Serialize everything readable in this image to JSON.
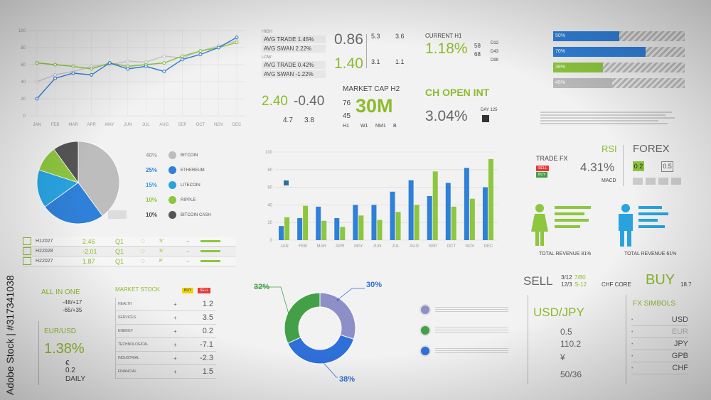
{
  "line_chart": {
    "y_ticks": [
      "100",
      "80",
      "60",
      "40",
      "20",
      "0"
    ],
    "months": [
      "JAN",
      "FEB",
      "MAR",
      "APR",
      "MAY",
      "JUN",
      "JUL",
      "AUG",
      "SEP",
      "OCT",
      "NOV",
      "DEC"
    ],
    "colors": {
      "blue": "#2f80d8",
      "green": "#8dc63f",
      "grey": "#cccccc"
    }
  },
  "high_low": {
    "high_label": "HIGH",
    "high_items": [
      "AVG TRADE 1.45%",
      "AVG SWAN 2.22%"
    ],
    "low_label": "LOW",
    "low_items": [
      "AVG TRADE 0.42%",
      "AVG SWAN -1.22%"
    ]
  },
  "stats_mid": {
    "v1": "0.86",
    "v1a": "5.3",
    "v1b": "3.6",
    "v2": "1.40",
    "v2a": "3.1",
    "v2b": "1.1"
  },
  "current_h1": {
    "label": "CURRENT H1",
    "value": "1.18%",
    "n1": "58",
    "n2": "68",
    "d1": "D12",
    "d2": "D43",
    "d3": "D99"
  },
  "progress_bars": [
    {
      "label": "50%",
      "value": 50,
      "color": "#2f80d8"
    },
    {
      "label": "70%",
      "value": 70,
      "color": "#2f80d8"
    },
    {
      "label": "38%",
      "value": 38,
      "color": "#8dc63f"
    },
    {
      "label": "45%",
      "value": 45,
      "color": "#bbbbbb"
    }
  ],
  "spread": {
    "v1": "2.40",
    "v2": "-0.40",
    "s1": "4.7",
    "s2": "3.8"
  },
  "market_cap": {
    "title": "MARKET CAP H2",
    "n1": "76",
    "n2": "45",
    "value": "30M",
    "h1": "H1",
    "w1": "W1",
    "nm1": "NM1",
    "b": "B"
  },
  "open_int": {
    "title": "CH OPEN INT",
    "value": "3.04%",
    "day": "DAY 125"
  },
  "pie": {
    "type": "pie",
    "slices": [
      {
        "name": "BITCOIN",
        "pct": 40,
        "label": "40%",
        "color": "#bdbdbd"
      },
      {
        "name": "ETHEREUM",
        "pct": 25,
        "label": "25%",
        "color": "#2f80d8"
      },
      {
        "name": "LITECOIN",
        "pct": 15,
        "label": "15%",
        "color": "#29a3e0"
      },
      {
        "name": "RIPPLE",
        "pct": 10,
        "label": "10%",
        "color": "#8dc63f"
      },
      {
        "name": "BITCOIN CASH",
        "pct": 10,
        "label": "10%",
        "color": "#555555"
      }
    ]
  },
  "chart_data": {
    "type": "bar",
    "categories": [
      "JAN",
      "FEB",
      "MAR",
      "APR",
      "MAY",
      "JUN",
      "JUL",
      "AUG",
      "SEP",
      "OCT",
      "NOV",
      "DEC"
    ],
    "y_ticks": [
      "100",
      "80",
      "60",
      "40",
      "20",
      "0"
    ],
    "ylim": [
      0,
      100
    ],
    "series": [
      {
        "color": "#2f80d8",
        "values": [
          16,
          25,
          38,
          25,
          40,
          40,
          55,
          68,
          50,
          65,
          82,
          60
        ]
      },
      {
        "color": "#8dc63f",
        "values": [
          26,
          39,
          22,
          15,
          28,
          23,
          32,
          40,
          78,
          38,
          47,
          92
        ]
      }
    ]
  },
  "trade_fx": {
    "title": "TRADE FX",
    "sell": "SELL",
    "buy": "BUY",
    "rsi": "RSI",
    "rsi_val": "4.31%",
    "macd": "MACD",
    "forex": "FOREX",
    "b1": "0.2",
    "b2": "0.5"
  },
  "revenue": {
    "female_label": "TOTAL REVENUE 81%",
    "male_label": "TOTAL REVENUE 61%"
  },
  "ticker_rows": [
    {
      "code": "H12027",
      "val": "2.46",
      "q": "Q1",
      "s": "S'"
    },
    {
      "code": "H22028",
      "val": "-2.01",
      "q": "Q1",
      "s": "S'"
    },
    {
      "code": "H22027",
      "val": "1.87",
      "q": "Q1",
      "s": "P"
    }
  ],
  "all_in_one": {
    "title": "ALL IN ONE",
    "r1": "-48/+17",
    "r2": "-65/+35",
    "pair": "EUR/USD",
    "pct": "1.38%",
    "euro": "€",
    "v": "0.2",
    "daily": "DAILY"
  },
  "market_stock": {
    "title": "MARKET STOCK",
    "buy": "BUY",
    "sell": "SELL",
    "rows": [
      {
        "name": "HEALTH",
        "val": "1.2"
      },
      {
        "name": "SERVICES",
        "val": "3.5"
      },
      {
        "name": "ENERGY",
        "val": "0.2"
      },
      {
        "name": "TECHNOLOGICAL",
        "val": "-7.1"
      },
      {
        "name": "INDUSTRIAL",
        "val": "-2.3"
      },
      {
        "name": "FINANCIAL",
        "val": "1.5"
      }
    ]
  },
  "donut": {
    "a": "32%",
    "b": "30%",
    "c": "38%"
  },
  "usdjpy": {
    "sell": "SELL",
    "f1": "3/12",
    "f2": "7/80",
    "f3": "12/3",
    "f4": "S-12",
    "chf": "CHF CORE",
    "buy": "BUY",
    "buyv": "18.7",
    "pair": "USD/JPY",
    "v1": "0.5",
    "v2": "110.2",
    "yen": "¥",
    "v3": "50/36"
  },
  "fx_symbols": {
    "title": "FX SIMBOLS",
    "items": [
      "USD",
      "EUR",
      "JPY",
      "GPB",
      "CHF"
    ]
  },
  "watermark": "Adobe Stock | #317341038"
}
